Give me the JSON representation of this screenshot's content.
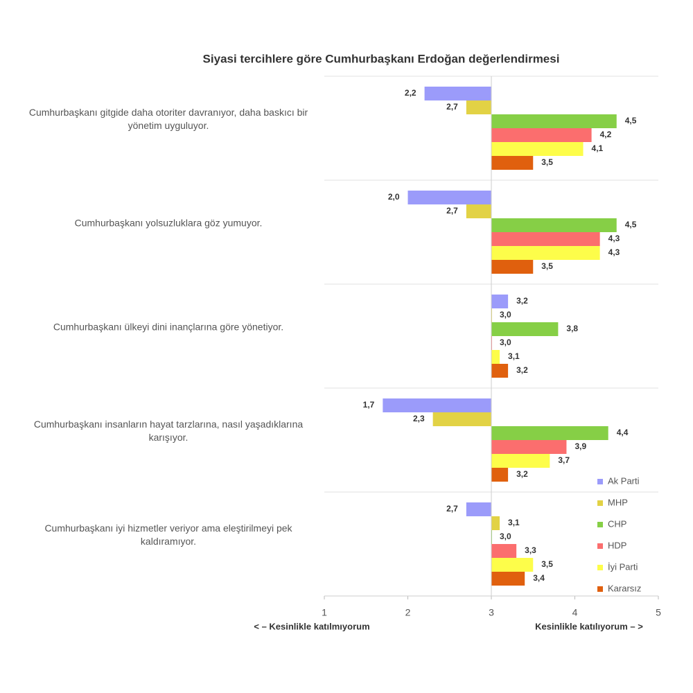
{
  "chart_data": {
    "type": "bar",
    "orientation": "horizontal",
    "title": "Siyasi tercihlere göre Cumhurbaşkanı Erdoğan değerlendirmesi",
    "categories": [
      "Cumhurbaşkanı gitgide daha otoriter davranıyor, daha baskıcı bir yönetim uyguluyor.",
      "Cumhurbaşkanı yolsuzluklara göz yumuyor.",
      "Cumhurbaşkanı ülkeyi dini inançlarına göre yönetiyor.",
      "Cumhurbaşkanı insanların hayat tarzlarına, nasıl yaşadıklarına karışıyor.",
      "Cumhurbaşkanı iyi hizmetler veriyor ama eleştirilmeyi pek kaldıramıyor."
    ],
    "series": [
      {
        "name": "Ak Parti",
        "color": "#9b9bfa",
        "values": [
          2.2,
          2.0,
          3.2,
          1.7,
          2.7
        ],
        "value_labels": [
          "2,2",
          "2,0",
          "3,2",
          "1,7",
          "2,7"
        ]
      },
      {
        "name": "MHP",
        "color": "#e2d245",
        "values": [
          2.7,
          2.7,
          3.0,
          2.3,
          3.1
        ],
        "value_labels": [
          "2,7",
          "2,7",
          "3,0",
          "2,3",
          "3,1"
        ]
      },
      {
        "name": "CHP",
        "color": "#86cf46",
        "values": [
          4.5,
          4.5,
          3.8,
          4.4,
          3.0
        ],
        "value_labels": [
          "4,5",
          "4,5",
          "3,8",
          "4,4",
          "3,0"
        ]
      },
      {
        "name": "HDP",
        "color": "#fb6e6e",
        "values": [
          4.2,
          4.3,
          3.0,
          3.9,
          3.3
        ],
        "value_labels": [
          "4,2",
          "4,3",
          "3,0",
          "3,9",
          "3,3"
        ]
      },
      {
        "name": "İyi Parti",
        "color": "#fdfd4a",
        "values": [
          4.1,
          4.3,
          3.1,
          3.7,
          3.5
        ],
        "value_labels": [
          "4,1",
          "4,3",
          "3,1",
          "3,7",
          "3,5"
        ]
      },
      {
        "name": "Kararsız",
        "color": "#e0600e",
        "values": [
          3.5,
          3.5,
          3.2,
          3.2,
          3.4
        ],
        "value_labels": [
          "3,5",
          "3,5",
          "3,2",
          "3,2",
          "3,4"
        ]
      }
    ],
    "xlim": [
      1,
      5
    ],
    "xticks": [
      1,
      2,
      3,
      4,
      5
    ],
    "base": 3,
    "xlabel_left": "< – Kesinlikle katılmıyorum",
    "xlabel_right": "Kesinlikle katılıyorum – >",
    "legend": "lower right"
  }
}
